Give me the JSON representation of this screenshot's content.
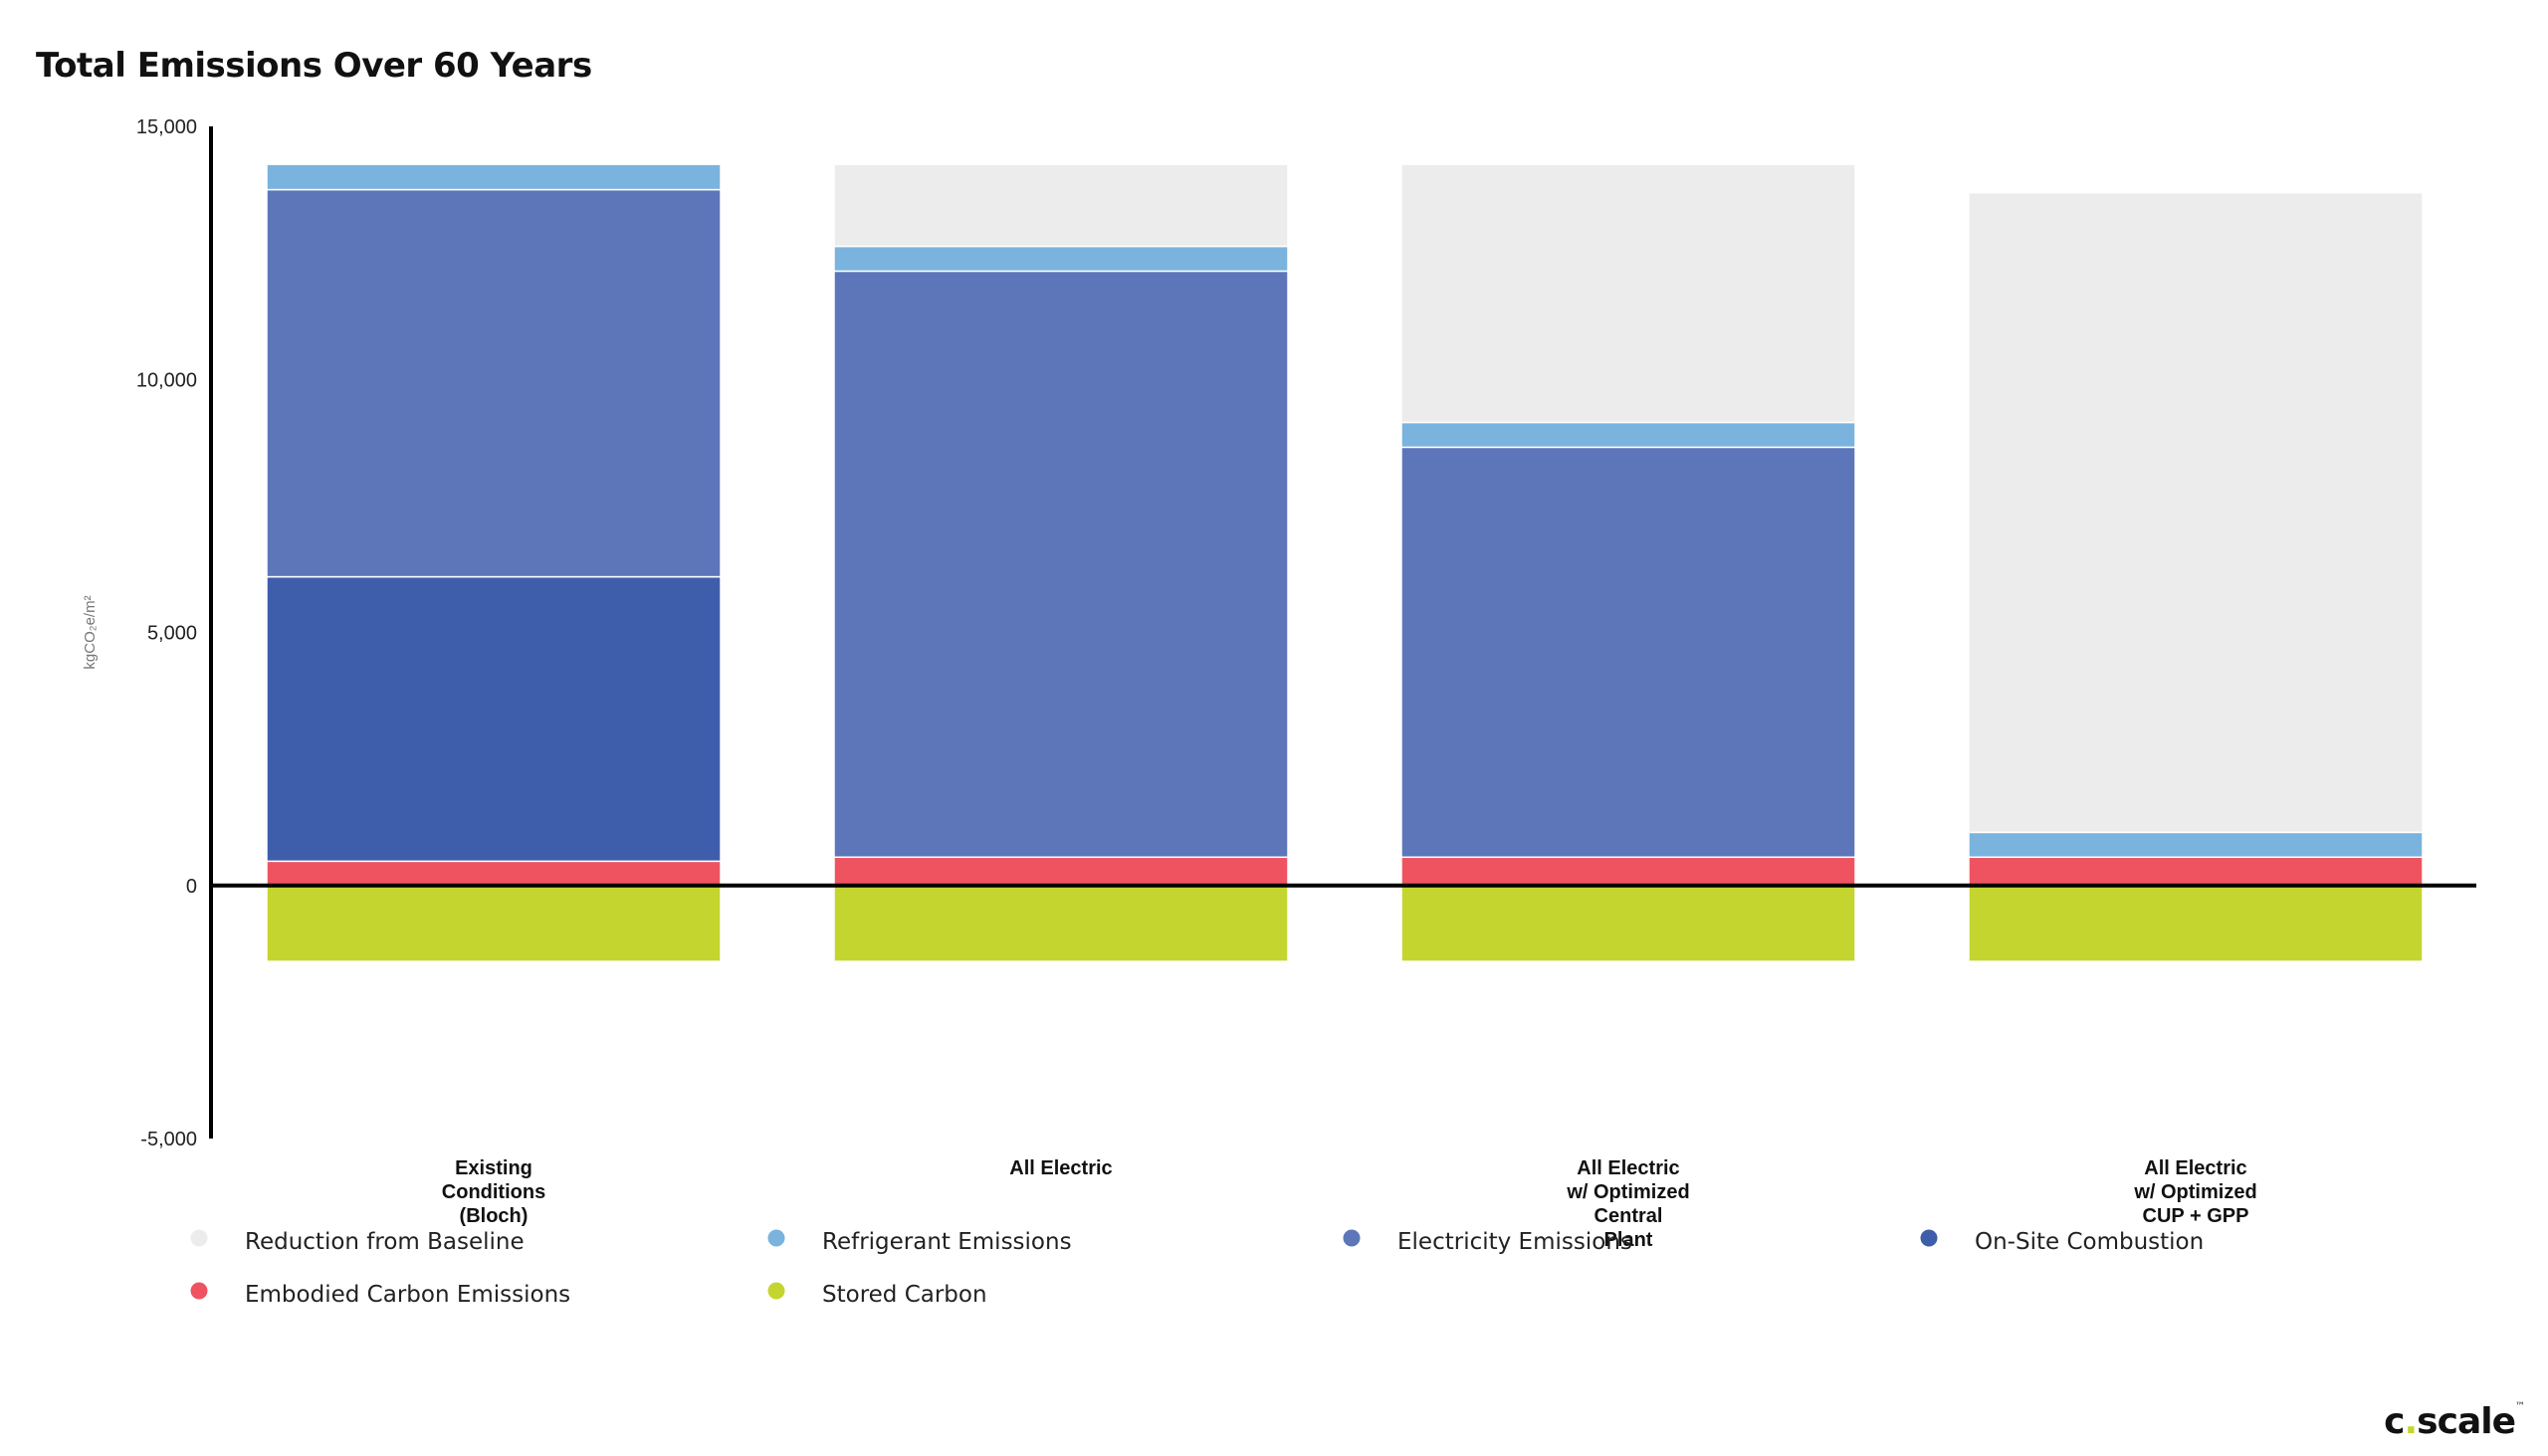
{
  "logo": {
    "text_left": "c",
    "text_dot": ".",
    "text_right": "scale",
    "mark": "™"
  },
  "colors": {
    "Reduction from Baseline": "#ececec",
    "Refrigerant Emissions": "#7ab3dd",
    "Electricity Emissions": "#5c76b9",
    "On-Site Combustion": "#3e5dab",
    "Embodied Carbon Emissions": "#ef5360",
    "Stored Carbon": "#c5d52f"
  },
  "chart_data": {
    "type": "bar",
    "stacked": true,
    "title": "Total Emissions Over 60 Years",
    "xlabel": "",
    "ylabel": "kgCO₂e/m²",
    "ylim": [
      -5000,
      15000
    ],
    "yticks": [
      -5000,
      0,
      5000,
      10000,
      15000
    ],
    "ytick_labels": [
      "-5,000",
      "0",
      "5,000",
      "10,000",
      "15,000"
    ],
    "grid": false,
    "legend_position": "bottom",
    "categories": [
      [
        "Existing",
        "Conditions",
        "(Bloch)"
      ],
      [
        "All Electric"
      ],
      [
        "All Electric",
        "w/ Optimized",
        "Central",
        "Plant"
      ],
      [
        "All Electric",
        "w/ Optimized",
        "CUP + GPP"
      ]
    ],
    "series": [
      {
        "name": "Stored Carbon",
        "values": [
          -1500,
          -1500,
          -1500,
          -1500
        ]
      },
      {
        "name": "Embodied Carbon Emissions",
        "values": [
          480,
          560,
          560,
          560
        ]
      },
      {
        "name": "On-Site Combustion",
        "values": [
          5620,
          0,
          0,
          0
        ]
      },
      {
        "name": "Electricity Emissions",
        "values": [
          7650,
          11580,
          8100,
          0
        ]
      },
      {
        "name": "Refrigerant Emissions",
        "values": [
          500,
          490,
          490,
          490
        ]
      },
      {
        "name": "Reduction from Baseline",
        "values": [
          0,
          1620,
          5100,
          12640
        ]
      }
    ],
    "legend": [
      [
        "Reduction from Baseline",
        "Refrigerant Emissions",
        "Electricity Emissions",
        "On-Site Combustion"
      ],
      [
        "Embodied Carbon Emissions",
        "Stored Carbon"
      ]
    ]
  }
}
